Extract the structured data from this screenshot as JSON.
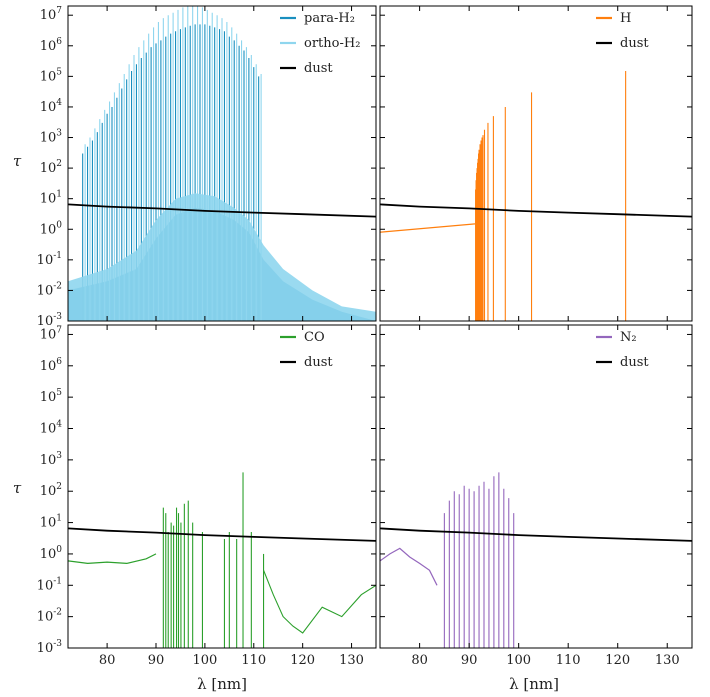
{
  "axis_labels": {
    "y": "τ",
    "x": "λ [nm]"
  },
  "colors": {
    "para_H2": "#1a8fbf",
    "ortho_H2": "#8fd6ee",
    "dust": "#000000",
    "H": "#ff7f0e",
    "CO": "#2ca02c",
    "N2": "#9467bd"
  },
  "chart_data": [
    {
      "type": "line",
      "panel": "top-left",
      "xlim": [
        72,
        135
      ],
      "ylim": [
        0.001,
        20000000
      ],
      "yscale": "log",
      "legend_position": "top-right",
      "series": [
        {
          "name": "para-H₂",
          "color": "#1a8fbf",
          "lines": [
            [
              75,
              300
            ],
            [
              76,
              500
            ],
            [
              77,
              800
            ],
            [
              78,
              1500
            ],
            [
              79,
              3000
            ],
            [
              80,
              6000
            ],
            [
              81,
              10000
            ],
            [
              82,
              20000
            ],
            [
              83,
              40000
            ],
            [
              84,
              80000
            ],
            [
              85,
              150000
            ],
            [
              86,
              250000
            ],
            [
              87,
              400000
            ],
            [
              88,
              600000
            ],
            [
              89,
              900000
            ],
            [
              90,
              1200000
            ],
            [
              91,
              1500000
            ],
            [
              92,
              2000000
            ],
            [
              93,
              2500000
            ],
            [
              94,
              3000000
            ],
            [
              95,
              3500000
            ],
            [
              96,
              4000000
            ],
            [
              97,
              4500000
            ],
            [
              98,
              5000000
            ],
            [
              99,
              5000000
            ],
            [
              100,
              5000000
            ],
            [
              101,
              4500000
            ],
            [
              102,
              4000000
            ],
            [
              103,
              3500000
            ],
            [
              104,
              3000000
            ],
            [
              105,
              2000000
            ],
            [
              106,
              1500000
            ],
            [
              107,
              1000000
            ],
            [
              108,
              700000
            ],
            [
              109,
              400000
            ],
            [
              110,
              200000
            ],
            [
              111,
              100000
            ]
          ],
          "envelope": [
            [
              72,
              0.01
            ],
            [
              80,
              0.02
            ],
            [
              86,
              0.05
            ],
            [
              90,
              0.5
            ],
            [
              94,
              3
            ],
            [
              98,
              5
            ],
            [
              102,
              4
            ],
            [
              106,
              2
            ],
            [
              109,
              0.8
            ],
            [
              112,
              0.1
            ],
            [
              116,
              0.02
            ],
            [
              122,
              0.005
            ],
            [
              128,
              0.002
            ],
            [
              135,
              0.001
            ]
          ]
        },
        {
          "name": "ortho-H₂",
          "color": "#8fd6ee",
          "lines": [
            [
              75.5,
              600
            ],
            [
              76.5,
              1000
            ],
            [
              77.5,
              2000
            ],
            [
              78.5,
              4000
            ],
            [
              79.5,
              8000
            ],
            [
              80.5,
              15000
            ],
            [
              81.5,
              30000
            ],
            [
              82.5,
              60000
            ],
            [
              83.5,
              120000
            ],
            [
              84.5,
              250000
            ],
            [
              85.5,
              500000
            ],
            [
              86.5,
              900000
            ],
            [
              87.5,
              1500000
            ],
            [
              88.5,
              2500000
            ],
            [
              89.5,
              4000000
            ],
            [
              90.5,
              6000000
            ],
            [
              91.5,
              8000000
            ],
            [
              92.5,
              10000000
            ],
            [
              93.5,
              12000000
            ],
            [
              94.5,
              15000000
            ],
            [
              95.5,
              18000000
            ],
            [
              96.5,
              20000000
            ],
            [
              97.5,
              20000000
            ],
            [
              98.5,
              20000000
            ],
            [
              99.5,
              18000000
            ],
            [
              100.5,
              15000000
            ],
            [
              101.5,
              12000000
            ],
            [
              102.5,
              10000000
            ],
            [
              103.5,
              8000000
            ],
            [
              104.5,
              6000000
            ],
            [
              105.5,
              4000000
            ],
            [
              106.5,
              2500000
            ],
            [
              107.5,
              1500000
            ],
            [
              108.5,
              900000
            ],
            [
              109.5,
              500000
            ],
            [
              110.5,
              250000
            ],
            [
              111.5,
              120000
            ]
          ],
          "envelope": [
            [
              72,
              0.02
            ],
            [
              80,
              0.05
            ],
            [
              86,
              0.2
            ],
            [
              90,
              2
            ],
            [
              94,
              10
            ],
            [
              98,
              15
            ],
            [
              102,
              12
            ],
            [
              106,
              5
            ],
            [
              109,
              2
            ],
            [
              112,
              0.3
            ],
            [
              116,
              0.05
            ],
            [
              122,
              0.01
            ],
            [
              128,
              0.003
            ],
            [
              135,
              0.002
            ]
          ]
        },
        {
          "name": "dust",
          "color": "#000000",
          "points": [
            [
              72,
              6.5
            ],
            [
              80,
              5.5
            ],
            [
              90,
              4.8
            ],
            [
              100,
              4
            ],
            [
              110,
              3.5
            ],
            [
              120,
              3.1
            ],
            [
              135,
              2.6
            ]
          ]
        }
      ]
    },
    {
      "type": "line",
      "panel": "top-right",
      "xlim": [
        72,
        135
      ],
      "ylim": [
        0.001,
        20000000
      ],
      "yscale": "log",
      "legend_position": "top-right",
      "series": [
        {
          "name": "H",
          "color": "#ff7f0e",
          "lines": [
            [
              91.3,
              20
            ],
            [
              91.4,
              40
            ],
            [
              91.5,
              70
            ],
            [
              91.6,
              100
            ],
            [
              91.7,
              150
            ],
            [
              91.8,
              200
            ],
            [
              91.9,
              300
            ],
            [
              92,
              400
            ],
            [
              92.2,
              600
            ],
            [
              92.4,
              800
            ],
            [
              92.6,
              1000
            ],
            [
              92.8,
              1200
            ],
            [
              93.1,
              1800
            ],
            [
              93.8,
              3000
            ],
            [
              94.9,
              5000
            ],
            [
              97.3,
              10000
            ],
            [
              102.6,
              30000
            ],
            [
              121.6,
              150000
            ]
          ],
          "continuum": [
            [
              72,
              0.8
            ],
            [
              91.2,
              1.5
            ]
          ]
        },
        {
          "name": "dust",
          "color": "#000000",
          "points": [
            [
              72,
              6.5
            ],
            [
              80,
              5.5
            ],
            [
              90,
              4.8
            ],
            [
              100,
              4
            ],
            [
              110,
              3.5
            ],
            [
              120,
              3.1
            ],
            [
              135,
              2.6
            ]
          ]
        }
      ]
    },
    {
      "type": "line",
      "panel": "bottom-left",
      "xlim": [
        72,
        135
      ],
      "ylim": [
        0.001,
        20000000
      ],
      "yscale": "log",
      "legend_position": "top-right",
      "series": [
        {
          "name": "CO",
          "color": "#2ca02c",
          "continuum": [
            [
              72,
              0.6
            ],
            [
              76,
              0.5
            ],
            [
              80,
              0.55
            ],
            [
              84,
              0.5
            ],
            [
              88,
              0.7
            ],
            [
              90,
              1
            ]
          ],
          "lines": [
            [
              91.5,
              30
            ],
            [
              92,
              20
            ],
            [
              92.5,
              5
            ],
            [
              93.1,
              10
            ],
            [
              93.6,
              8
            ],
            [
              94.2,
              30
            ],
            [
              94.6,
              20
            ],
            [
              95.1,
              10
            ],
            [
              95.8,
              40
            ],
            [
              96.6,
              50
            ],
            [
              97.5,
              10
            ],
            [
              99.5,
              5
            ],
            [
              104,
              3
            ],
            [
              105,
              5
            ],
            [
              106.5,
              3
            ],
            [
              107.8,
              400
            ],
            [
              109.5,
              5
            ],
            [
              112,
              1
            ]
          ],
          "tail": [
            [
              112,
              0.3
            ],
            [
              114,
              0.05
            ],
            [
              116,
              0.01
            ],
            [
              118,
              0.005
            ],
            [
              120,
              0.003
            ],
            [
              124,
              0.02
            ],
            [
              128,
              0.01
            ],
            [
              132,
              0.05
            ],
            [
              135,
              0.1
            ]
          ]
        },
        {
          "name": "dust",
          "color": "#000000",
          "points": [
            [
              72,
              6.5
            ],
            [
              80,
              5.5
            ],
            [
              90,
              4.8
            ],
            [
              100,
              4
            ],
            [
              110,
              3.5
            ],
            [
              120,
              3.1
            ],
            [
              135,
              2.6
            ]
          ]
        }
      ]
    },
    {
      "type": "line",
      "panel": "bottom-right",
      "xlim": [
        72,
        135
      ],
      "ylim": [
        0.001,
        20000000
      ],
      "yscale": "log",
      "legend_position": "top-right",
      "series": [
        {
          "name": "N₂",
          "color": "#9467bd",
          "continuum": [
            [
              72,
              0.6
            ],
            [
              74,
              1
            ],
            [
              76,
              1.5
            ],
            [
              78,
              0.8
            ],
            [
              80,
              0.5
            ],
            [
              82,
              0.3
            ],
            [
              83.5,
              0.1
            ]
          ],
          "lines": [
            [
              85,
              20
            ],
            [
              86,
              50
            ],
            [
              87,
              100
            ],
            [
              88,
              80
            ],
            [
              89,
              150
            ],
            [
              90,
              120
            ],
            [
              91,
              100
            ],
            [
              92,
              150
            ],
            [
              93,
              200
            ],
            [
              94,
              120
            ],
            [
              95,
              300
            ],
            [
              96,
              400
            ],
            [
              97,
              120
            ],
            [
              98,
              60
            ],
            [
              99,
              20
            ]
          ]
        },
        {
          "name": "dust",
          "color": "#000000",
          "points": [
            [
              72,
              6.5
            ],
            [
              80,
              5.5
            ],
            [
              90,
              4.8
            ],
            [
              100,
              4
            ],
            [
              110,
              3.5
            ],
            [
              120,
              3.1
            ],
            [
              135,
              2.6
            ]
          ]
        }
      ]
    }
  ]
}
